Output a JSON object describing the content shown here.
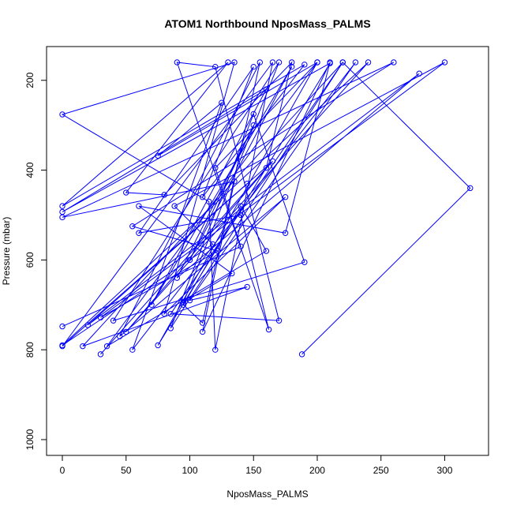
{
  "chart_data": {
    "type": "line",
    "title": "ATOM1 Northbound NposMass_PALMS",
    "xlabel": "NposMass_PALMS",
    "ylabel": "Pressure (mbar)",
    "xlim": [
      0,
      322
    ],
    "ylim": [
      1000,
      160
    ],
    "y_reversed": true,
    "x_ticks": [
      0,
      50,
      100,
      150,
      200,
      250,
      300
    ],
    "y_ticks": [
      200,
      400,
      600,
      800,
      1000
    ],
    "grid": false,
    "legend": "none",
    "series_color": "#0000ff",
    "marker": "open-circle",
    "series": [
      {
        "x": [
          0,
          140,
          120,
          200,
          75,
          210,
          0,
          160,
          70,
          180,
          100,
          150,
          90,
          280,
          20,
          165,
          50,
          240,
          0,
          118,
          88,
          300,
          30,
          122,
          55,
          260,
          0,
          135,
          110,
          210,
          175,
          60,
          133,
          95,
          170,
          40,
          190,
          150,
          85,
          220,
          320,
          188
        ],
        "y": [
          748,
          570,
          395,
          160,
          790,
          162,
          493,
          220,
          700,
          170,
          600,
          300,
          640,
          185,
          745,
          380,
          760,
          160,
          790,
          565,
          480,
          160,
          728,
          580,
          525,
          160,
          505,
          425,
          760,
          160,
          540,
          480,
          630,
          695,
          160,
          735,
          605,
          275,
          752,
          160,
          440,
          810
        ]
      },
      {
        "x": [
          30,
          160,
          180,
          80,
          50,
          130,
          0,
          190,
          110,
          150,
          60,
          140,
          162,
          90,
          120,
          170,
          85,
          220,
          16,
          145,
          100,
          230,
          55,
          125,
          75,
          200,
          35,
          160,
          140,
          95,
          110,
          155,
          45,
          175,
          80,
          135,
          0,
          115,
          120,
          165,
          0,
          145
        ],
        "y": [
          810,
          395,
          160,
          455,
          450,
          160,
          480,
          165,
          460,
          170,
          540,
          500,
          755,
          160,
          170,
          735,
          720,
          160,
          792,
          660,
          690,
          160,
          800,
          250,
          368,
          160,
          792,
          580,
          480,
          700,
          740,
          160,
          770,
          460,
          720,
          160,
          276,
          470,
          800,
          160,
          792,
          430
        ]
      }
    ]
  }
}
